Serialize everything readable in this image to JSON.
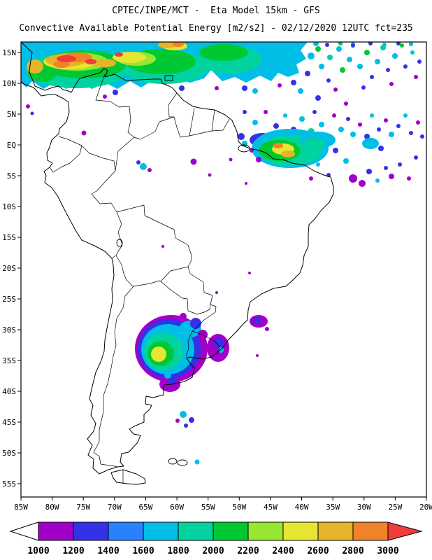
{
  "header": {
    "line1": "CPTEC/INPE/MCT -  Eta Model 15km - GFS",
    "line2": "Convective Available Potential Energy [m2/s2] - 02/12/2020 12UTC fct=235"
  },
  "map": {
    "lat_labels": [
      "15N",
      "10N",
      "5N",
      "EQ",
      "5S",
      "10S",
      "15S",
      "20S",
      "25S",
      "30S",
      "35S",
      "40S",
      "45S",
      "50S",
      "55S"
    ],
    "lon_labels": [
      "85W",
      "80W",
      "75W",
      "70W",
      "65W",
      "60W",
      "55W",
      "50W",
      "45W",
      "40W",
      "35W",
      "30W",
      "25W",
      "20W"
    ]
  },
  "colorbar": {
    "labels": [
      "1000",
      "1200",
      "1400",
      "1600",
      "1800",
      "2000",
      "2200",
      "2400",
      "2600",
      "2800",
      "3000"
    ],
    "colors": [
      "#A000C8",
      "#3232E6",
      "#2882FF",
      "#00BEE6",
      "#00D2A0",
      "#00C832",
      "#96E632",
      "#E6E632",
      "#E6B428",
      "#F08228"
    ],
    "below_color": "#FFFFFF",
    "above_color": "#F03C3C"
  },
  "chart_data": {
    "type": "heatmap",
    "title": "CPTEC/INPE/MCT -  Eta Model 15km - GFS",
    "subtitle": "Convective Available Potential Energy [m2/s2] - 02/12/2020 12UTC fct=235",
    "variable": "Convective Available Potential Energy",
    "units": "m2/s2",
    "levels": [
      1000,
      1200,
      1400,
      1600,
      1800,
      2000,
      2200,
      2400,
      2600,
      2800,
      3000
    ],
    "x_axis": {
      "label": "longitude",
      "ticks": [
        "85W",
        "80W",
        "75W",
        "70W",
        "65W",
        "60W",
        "55W",
        "50W",
        "45W",
        "40W",
        "35W",
        "30W",
        "25W",
        "20W"
      ]
    },
    "y_axis": {
      "label": "latitude",
      "ticks": [
        "15N",
        "10N",
        "5N",
        "EQ",
        "5S",
        "10S",
        "15S",
        "20S",
        "25S",
        "30S",
        "35S",
        "40S",
        "45S",
        "50S",
        "55S"
      ]
    },
    "legend_position": "bottom",
    "regions": [
      {
        "area": "Caribbean Sea north of Colombia/Venezuela (85W-45W, 8N-16N)",
        "cape_m2s2": "1600-3000+, red cores >3000 near 78W-70W 12N-15N"
      },
      {
        "area": "Tropical Atlantic NE of Brazil (50W-20W, 7N-8S)",
        "cape_m2s2": "1000-1800 scattered speckles"
      },
      {
        "area": "NE Brazil coast (46W-38W, 2N-3S)",
        "cape_m2s2": "1800-2800 with yellow/orange core"
      },
      {
        "area": "NE Argentina Pampas (66W-57W, 28S-37S)",
        "cape_m2s2": "1000-2600, yellow core ~2400-2600 near 63W 33S"
      },
      {
        "area": "Uruguay / S Brazil (55W-52W, 31S-35S)",
        "cape_m2s2": "1000-1600 patches"
      },
      {
        "area": "Offshore S Brazil (47W-45W, 28S-30S)",
        "cape_m2s2": "1000-1400 patch"
      },
      {
        "area": "Patagonia coast (60W-57W, 44S-46S and 52S)",
        "cape_m2s2": "1000-1800 isolated specks"
      },
      {
        "area": "Amazon interior",
        "cape_m2s2": "1000-1600 isolated specks near the equator"
      }
    ]
  }
}
